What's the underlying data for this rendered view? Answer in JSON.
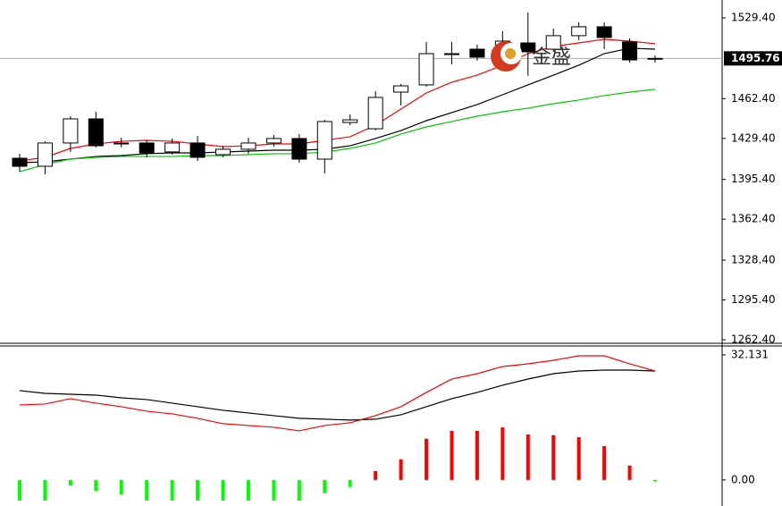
{
  "chart_data": [
    {
      "type": "candlestick",
      "watermark": "金盛",
      "open": [
        1412.96,
        1406.3,
        1425.6,
        1445.6,
        1425.6,
        1425.6,
        1418.2,
        1425.6,
        1415.9,
        1420.4,
        1425.6,
        1429.3,
        1412.2,
        1442.6,
        1437.4,
        1467.8,
        1473.8,
        1499.0,
        1503.4,
        1496.8,
        1508.6,
        1503.4,
        1514.6,
        1522.0,
        1509.4,
        1495.3
      ],
      "high": [
        1416.67,
        1427.1,
        1447.8,
        1451.5,
        1430.0,
        1427.8,
        1429.3,
        1431.5,
        1423.3,
        1430.0,
        1432.2,
        1433.0,
        1444.8,
        1449.3,
        1468.6,
        1474.5,
        1509.4,
        1509.4,
        1507.2,
        1518.3,
        1533.9,
        1520.5,
        1525.7,
        1525.7,
        1512.3,
        1498.3
      ],
      "low": [
        1401.83,
        1399.6,
        1418.2,
        1421.9,
        1421.9,
        1413.7,
        1415.9,
        1410.7,
        1413.7,
        1416.7,
        1422.6,
        1409.2,
        1400.3,
        1440.4,
        1436.0,
        1456.7,
        1472.3,
        1490.8,
        1493.8,
        1492.3,
        1481.2,
        1501.2,
        1510.9,
        1503.4,
        1492.3,
        1492.3
      ],
      "close": [
        1406.28,
        1425.6,
        1445.6,
        1423.3,
        1424.8,
        1417.4,
        1425.6,
        1413.7,
        1420.4,
        1425.6,
        1429.3,
        1412.2,
        1443.4,
        1444.8,
        1463.4,
        1473.0,
        1499.7,
        1499.7,
        1496.8,
        1510.1,
        1501.2,
        1514.6,
        1522.0,
        1513.1,
        1494.5,
        1495.76
      ],
      "up_color": "#ffffff",
      "down_color": "#000000",
      "series": [
        {
          "color": "#ff0000",
          "values": [
            1410.7,
            1413.7,
            1421.1,
            1424.8,
            1427.0,
            1427.8,
            1427.0,
            1424.8,
            1422.6,
            1423.3,
            1424.8,
            1424.8,
            1427.8,
            1430.8,
            1440.4,
            1453.7,
            1467.1,
            1476.0,
            1481.9,
            1490.1,
            1499.7,
            1505.7,
            1508.6,
            1511.6,
            1510.1,
            1507.9
          ]
        },
        {
          "color": "#000000",
          "values": [
            1409.2,
            1410.0,
            1412.2,
            1414.4,
            1415.2,
            1416.7,
            1417.4,
            1417.4,
            1418.1,
            1418.9,
            1419.6,
            1419.6,
            1420.4,
            1423.3,
            1429.3,
            1435.9,
            1444.1,
            1450.8,
            1457.5,
            1465.6,
            1473.8,
            1481.9,
            1490.1,
            1499.7,
            1504.2,
            1503.4
          ]
        },
        {
          "color": "#00c800",
          "values": [
            1401.8,
            1407.8,
            1412.2,
            1413.7,
            1414.4,
            1414.4,
            1414.4,
            1415.2,
            1415.2,
            1415.9,
            1416.7,
            1416.7,
            1418.1,
            1421.1,
            1425.6,
            1433.0,
            1438.9,
            1443.4,
            1447.8,
            1451.5,
            1454.5,
            1458.2,
            1461.2,
            1464.9,
            1467.8,
            1470.1
          ]
        }
      ],
      "ylim": [
        1260.2,
        1544.2
      ],
      "yticks": [
        {
          "value": 1529.4,
          "label": "1529.40"
        },
        {
          "value": 1462.4,
          "label": "1462.40"
        },
        {
          "value": 1429.4,
          "label": "1429.40"
        },
        {
          "value": 1395.4,
          "label": "1395.40"
        },
        {
          "value": 1362.4,
          "label": "1362.40"
        },
        {
          "value": 1328.4,
          "label": "1328.40"
        },
        {
          "value": 1295.4,
          "label": "1295.40"
        },
        {
          "value": 1262.4,
          "label": "1262.40"
        }
      ],
      "last_price": {
        "value": 1495.76,
        "label": "1495.76"
      }
    },
    {
      "type": "macd",
      "histogram": {
        "values": [
          -5.3,
          -5.3,
          -1.4,
          -2.8,
          -3.7,
          -5.3,
          -5.3,
          -5.3,
          -5.3,
          -5.3,
          -5.3,
          -5.3,
          -3.4,
          -1.8,
          2.3,
          5.3,
          10.6,
          12.6,
          12.6,
          13.5,
          11.7,
          11.5,
          11.0,
          8.7,
          3.7,
          -0.4
        ],
        "positive_color": "#ff0000",
        "negative_color": "#00ff00"
      },
      "series": [
        {
          "color": "#000000",
          "values": [
            22.95,
            22.26,
            22.03,
            21.8,
            21.11,
            20.66,
            19.74,
            18.82,
            17.9,
            17.21,
            16.52,
            15.84,
            15.61,
            15.38,
            15.61,
            16.75,
            18.82,
            20.88,
            22.49,
            24.33,
            25.93,
            27.31,
            28.0,
            28.23,
            28.23,
            28.0
          ]
        },
        {
          "color": "#ff0000",
          "values": [
            19.28,
            19.51,
            20.88,
            19.74,
            18.82,
            17.67,
            16.98,
            15.84,
            14.46,
            14.0,
            13.54,
            12.62,
            14.0,
            14.69,
            16.52,
            18.82,
            22.49,
            25.93,
            27.31,
            29.15,
            29.84,
            30.75,
            31.9,
            31.9,
            29.84,
            28.0
          ]
        }
      ],
      "ylim": [
        -6.7,
        34.2
      ],
      "yticks": [
        32.131,
        {
          "value": 0,
          "label": "0.00"
        }
      ]
    }
  ]
}
